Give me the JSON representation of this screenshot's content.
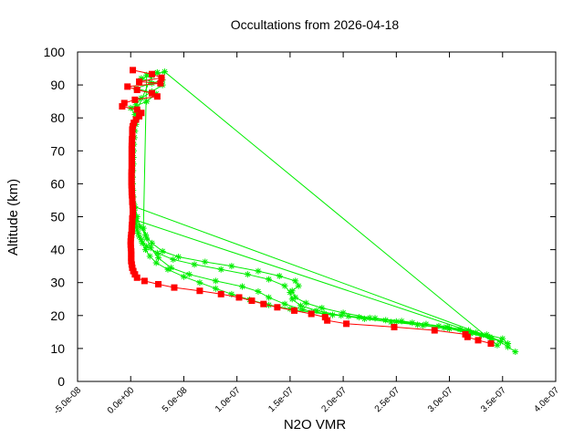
{
  "chart_data": {
    "type": "scatter",
    "title": "Occultations from 2026-04-18",
    "xlabel": "N2O VMR",
    "ylabel": "Altitude (km)",
    "xlim": [
      -5e-08,
      4e-07
    ],
    "ylim": [
      0,
      100
    ],
    "xticks": [
      -5e-08,
      0,
      5e-08,
      1e-07,
      1.5e-07,
      2e-07,
      2.5e-07,
      3e-07,
      3.5e-07,
      4e-07
    ],
    "xtick_labels": [
      "-5.0e-08",
      "0.0e+00",
      "5.0e-08",
      "1.0e-07",
      "1.5e-07",
      "2.0e-07",
      "2.5e-07",
      "3.0e-07",
      "3.5e-07",
      "4.0e-07"
    ],
    "yticks": [
      0,
      10,
      20,
      30,
      40,
      50,
      60,
      70,
      80,
      90,
      100
    ],
    "ytick_labels": [
      "0",
      "10",
      "20",
      "30",
      "40",
      "50",
      "60",
      "70",
      "80",
      "90",
      "100"
    ],
    "grid": false,
    "legend": "none",
    "series": [
      {
        "color": "#ff0000",
        "marker": "square",
        "points": [
          [
            3.39e-07,
            11.5
          ],
          [
            3.27e-07,
            12.5
          ],
          [
            3.17e-07,
            13.5
          ],
          [
            3.15e-07,
            14.3
          ],
          [
            2.86e-07,
            15.5
          ],
          [
            2.48e-07,
            16.5
          ],
          [
            2.03e-07,
            17.5
          ],
          [
            1.85e-07,
            18.5
          ],
          [
            1.83e-07,
            19.5
          ],
          [
            1.7e-07,
            20.5
          ],
          [
            1.54e-07,
            21.5
          ],
          [
            1.38e-07,
            22.5
          ],
          [
            1.25e-07,
            23.5
          ],
          [
            1.14e-07,
            24.5
          ],
          [
            1.02e-07,
            25.5
          ],
          [
            8.5e-08,
            26.5
          ],
          [
            6.5e-08,
            27.5
          ],
          [
            4.1e-08,
            28.5
          ],
          [
            2.6e-08,
            29.5
          ],
          [
            1.3e-08,
            30.5
          ],
          [
            6e-09,
            31.5
          ],
          [
            4e-09,
            32.5
          ],
          [
            2.5e-09,
            33.5
          ],
          [
            1.5e-09,
            34.5
          ],
          [
            1e-09,
            35.5
          ],
          [
            5e-10,
            36.5
          ],
          [
            5e-10,
            37.5
          ],
          [
            5e-10,
            38.5
          ],
          [
            5e-10,
            39.5
          ],
          [
            2e-10,
            40.5
          ],
          [
            0.0,
            41.5
          ],
          [
            0.0,
            42.5
          ],
          [
            2e-10,
            43.5
          ],
          [
            5e-10,
            44.5
          ],
          [
            1e-09,
            45.5
          ],
          [
            1e-09,
            46.5
          ],
          [
            1.2e-09,
            47.5
          ],
          [
            1.5e-09,
            48.5
          ],
          [
            1.5e-09,
            49.5
          ],
          [
            2e-09,
            50.5
          ],
          [
            2e-09,
            51.5
          ],
          [
            2e-09,
            52.5
          ],
          [
            1.8e-09,
            53.5
          ],
          [
            1.5e-09,
            54.5
          ],
          [
            1.5e-09,
            55.5
          ],
          [
            1.2e-09,
            56.5
          ],
          [
            1e-09,
            57.5
          ],
          [
            1e-09,
            58.5
          ],
          [
            8e-10,
            59.5
          ],
          [
            8e-10,
            60.5
          ],
          [
            8e-10,
            61.5
          ],
          [
            8e-10,
            62.5
          ],
          [
            8e-10,
            63.5
          ],
          [
            1e-09,
            64.5
          ],
          [
            1e-09,
            65.5
          ],
          [
            1e-09,
            66.5
          ],
          [
            1e-09,
            67.5
          ],
          [
            1e-09,
            68.5
          ],
          [
            1e-09,
            69.5
          ],
          [
            1e-09,
            70.5
          ],
          [
            1e-09,
            71.5
          ],
          [
            1.2e-09,
            72.5
          ],
          [
            1.2e-09,
            73.5
          ],
          [
            1.5e-09,
            74.5
          ],
          [
            1.5e-09,
            75.5
          ],
          [
            1.5e-09,
            76.5
          ],
          [
            2e-09,
            77.5
          ],
          [
            3e-09,
            78.5
          ],
          [
            5e-09,
            79.5
          ],
          [
            8e-09,
            80.5
          ],
          [
            1e-08,
            81.5
          ],
          [
            6e-09,
            82.5
          ],
          [
            -8e-09,
            83.5
          ],
          [
            -6e-09,
            84.5
          ],
          [
            4e-09,
            85.5
          ],
          [
            2.5e-08,
            86.5
          ],
          [
            2e-08,
            87.5
          ],
          [
            6e-09,
            88.5
          ],
          [
            -3e-09,
            89.5
          ],
          [
            2.8e-08,
            90.5
          ],
          [
            8e-09,
            91.0
          ],
          [
            2.9e-08,
            92.2
          ],
          [
            2e-08,
            93.3
          ],
          [
            2e-09,
            94.5
          ]
        ]
      },
      {
        "color": "#00ee00",
        "marker": "plus",
        "points": [
          [
            3.62e-07,
            9.0
          ],
          [
            3.55e-07,
            10.5
          ],
          [
            3.48e-07,
            12.0
          ],
          [
            3.38e-07,
            13.5
          ],
          [
            3.25e-07,
            14.8
          ],
          [
            3.1e-07,
            15.8
          ],
          [
            2.9e-07,
            16.8
          ],
          [
            2.65e-07,
            17.8
          ],
          [
            2.4e-07,
            18.6
          ],
          [
            2.15e-07,
            19.5
          ],
          [
            1.9e-07,
            20.2
          ],
          [
            1.7e-07,
            21.0
          ],
          [
            1.5e-07,
            22.0
          ],
          [
            1.3e-07,
            23.2
          ],
          [
            1.12e-07,
            24.8
          ],
          [
            9.5e-08,
            26.5
          ],
          [
            8e-08,
            28.2
          ],
          [
            6.5e-08,
            30.0
          ],
          [
            5e-08,
            31.8
          ],
          [
            3.5e-08,
            34.0
          ],
          [
            2.4e-08,
            36.0
          ],
          [
            1.8e-08,
            38.0
          ],
          [
            1.4e-08,
            40.0
          ],
          [
            1.1e-08,
            42.0
          ],
          [
            8e-09,
            44.0
          ],
          [
            6e-09,
            46.0
          ],
          [
            5e-09,
            48.0
          ],
          [
            4e-09,
            50.0
          ],
          [
            3.5e-09,
            52.0
          ],
          [
            3e-09,
            54.0
          ],
          [
            2.5e-09,
            56.0
          ],
          [
            2.2e-09,
            58.0
          ],
          [
            2e-09,
            60.0
          ],
          [
            2e-09,
            62.0
          ],
          [
            2.2e-09,
            64.0
          ],
          [
            2.5e-09,
            66.0
          ],
          [
            2.5e-09,
            68.0
          ],
          [
            2.8e-09,
            70.0
          ],
          [
            3e-09,
            72.0
          ],
          [
            3.5e-09,
            74.0
          ],
          [
            4e-09,
            76.0
          ],
          [
            5e-09,
            78.0
          ],
          [
            6e-09,
            80.0
          ],
          [
            7e-09,
            82.0
          ],
          [
            5e-09,
            84.0
          ],
          [
            1e-08,
            86.0
          ],
          [
            2e-08,
            88.0
          ],
          [
            3e-08,
            90.0
          ],
          [
            1e-08,
            92.0
          ],
          [
            3.2e-08,
            94.0
          ],
          [
            3.45e-07,
            11.0
          ],
          [
            3.4e-07,
            12.5
          ],
          [
            3.3e-07,
            14.0
          ],
          [
            3.15e-07,
            15.3
          ],
          [
            2.95e-07,
            16.3
          ],
          [
            2.7e-07,
            17.2
          ],
          [
            2.45e-07,
            18.0
          ],
          [
            2.2e-07,
            19.0
          ],
          [
            1.98e-07,
            20.0
          ],
          [
            1.75e-07,
            21.5
          ],
          [
            1.6e-07,
            23.0
          ],
          [
            1.52e-07,
            25.0
          ],
          [
            1.5e-07,
            27.0
          ],
          [
            1.45e-07,
            29.0
          ],
          [
            1.3e-07,
            31.0
          ],
          [
            1.1e-07,
            32.5
          ],
          [
            8.5e-08,
            34.0
          ],
          [
            6e-08,
            35.5
          ],
          [
            4e-08,
            37.0
          ],
          [
            2.5e-08,
            39.0
          ],
          [
            1.5e-08,
            41.0
          ],
          [
            1e-08,
            43.0
          ],
          [
            7e-09,
            45.0
          ],
          [
            5.5e-09,
            47.0
          ],
          [
            4.5e-09,
            49.0
          ],
          [
            3.4e-07,
            13.0
          ],
          [
            3.2e-07,
            14.5
          ],
          [
            3e-07,
            16.0
          ],
          [
            2.75e-07,
            17.0
          ],
          [
            2.5e-07,
            18.2
          ],
          [
            2.25e-07,
            19.3
          ],
          [
            2e-07,
            20.8
          ],
          [
            1.8e-07,
            22.3
          ],
          [
            1.65e-07,
            23.8
          ],
          [
            1.55e-07,
            25.5
          ],
          [
            1.52e-07,
            27.5
          ],
          [
            1.58e-07,
            29.0
          ],
          [
            1.55e-07,
            30.5
          ],
          [
            1.4e-07,
            32.0
          ],
          [
            1.2e-07,
            33.5
          ],
          [
            9.5e-08,
            35.0
          ],
          [
            7e-08,
            36.3
          ],
          [
            4.5e-08,
            37.8
          ],
          [
            3e-08,
            39.5
          ],
          [
            2e-08,
            42.0
          ],
          [
            1.4e-08,
            44.5
          ],
          [
            9e-09,
            47.0
          ],
          [
            6e-09,
            50.0
          ],
          [
            4e-09,
            53.0
          ],
          [
            3.55e-07,
            11.5
          ],
          [
            3.5e-07,
            13.0
          ],
          [
            3.35e-07,
            14.2
          ],
          [
            3.18e-07,
            15.5
          ],
          [
            2.98e-07,
            16.5
          ],
          [
            2.78e-07,
            17.4
          ],
          [
            2.55e-07,
            18.3
          ],
          [
            2.3e-07,
            19.2
          ],
          [
            2.05e-07,
            19.8
          ],
          [
            1.82e-07,
            20.6
          ],
          [
            1.62e-07,
            21.8
          ],
          [
            1.45e-07,
            23.5
          ],
          [
            1.3e-07,
            25.5
          ],
          [
            1.2e-07,
            27.3
          ],
          [
            1.05e-07,
            28.8
          ],
          [
            8e-08,
            30.5
          ],
          [
            5.5e-08,
            32.5
          ],
          [
            3.8e-08,
            34.5
          ],
          [
            2.6e-08,
            37.5
          ],
          [
            1.9e-08,
            40.5
          ],
          [
            1.5e-08,
            43.5
          ],
          [
            1.2e-08,
            46.5
          ],
          [
            1.5e-08,
            93.0
          ],
          [
            2.5e-08,
            93.8
          ],
          [
            3e-08,
            91.5
          ],
          [
            2e-08,
            90.5
          ],
          [
            5e-09,
            89.0
          ],
          [
            2.4e-08,
            87.3
          ],
          [
            1.5e-08,
            85.0
          ],
          [
            0.0,
            83.0
          ],
          [
            4e-09,
            81.0
          ],
          [
            2e-08,
            92.8
          ]
        ]
      }
    ]
  }
}
